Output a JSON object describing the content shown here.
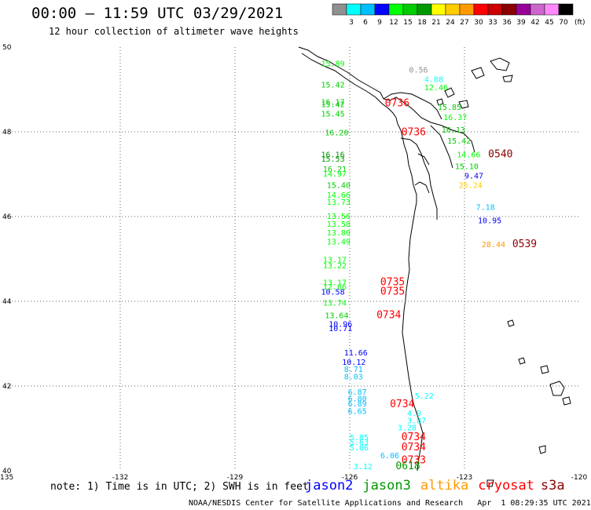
{
  "header": {
    "title": "00:00 – 11:59 UTC 03/29/2021",
    "subtitle": "12 hour collection of altimeter wave heights"
  },
  "colorbar": {
    "unit": "(ft)",
    "bins": [
      {
        "label": "",
        "color": "#909090"
      },
      {
        "label": "3",
        "color": "#00ffff"
      },
      {
        "label": "6",
        "color": "#00bfff"
      },
      {
        "label": "9",
        "color": "#0000ff"
      },
      {
        "label": "12",
        "color": "#00ff00"
      },
      {
        "label": "15",
        "color": "#00cc00"
      },
      {
        "label": "18",
        "color": "#009900"
      },
      {
        "label": "21",
        "color": "#ffff00"
      },
      {
        "label": "24",
        "color": "#ffcc00"
      },
      {
        "label": "27",
        "color": "#ff9900"
      },
      {
        "label": "30",
        "color": "#ff0000"
      },
      {
        "label": "33",
        "color": "#cc0000"
      },
      {
        "label": "36",
        "color": "#8b0000"
      },
      {
        "label": "39",
        "color": "#990099"
      },
      {
        "label": "42",
        "color": "#cc66cc"
      },
      {
        "label": "45",
        "color": "#ff88ff"
      },
      {
        "label": "70",
        "color": "#000000"
      }
    ]
  },
  "axes": {
    "lon_ticks": [
      {
        "lon": -135,
        "label": "-135"
      },
      {
        "lon": -132,
        "label": "-132"
      },
      {
        "lon": -129,
        "label": "-129"
      },
      {
        "lon": -126,
        "label": "-126"
      },
      {
        "lon": -123,
        "label": "-123"
      },
      {
        "lon": -120,
        "label": "-120"
      }
    ],
    "lat_ticks": [
      {
        "lat": 50,
        "label": "50"
      },
      {
        "lat": 48,
        "label": "48"
      },
      {
        "lat": 46,
        "label": "46"
      },
      {
        "lat": 44,
        "label": "44"
      },
      {
        "lat": 42,
        "label": "42"
      },
      {
        "lat": 40,
        "label": "40"
      }
    ],
    "lon_range": [
      -135,
      -120
    ],
    "lat_range": [
      40,
      50
    ],
    "grid": "dotted"
  },
  "observations": [
    {
      "text": "15.89",
      "lon": -126.75,
      "lat": 49.55,
      "color": "#00ff00"
    },
    {
      "text": "0.56",
      "lon": -124.45,
      "lat": 49.4,
      "color": "#909090"
    },
    {
      "text": "4.88",
      "lon": -124.05,
      "lat": 49.18,
      "color": "#00ffff"
    },
    {
      "text": "12.46",
      "lon": -124.05,
      "lat": 48.98,
      "color": "#00ff00"
    },
    {
      "text": "15.42",
      "lon": -126.75,
      "lat": 49.05,
      "color": "#00cc00"
    },
    {
      "text": "15.42",
      "lon": -126.75,
      "lat": 48.58,
      "color": "#00cc00"
    },
    {
      "text": "16.17",
      "lon": -126.75,
      "lat": 48.64,
      "color": "#00cc00"
    },
    {
      "text": "15.45",
      "lon": -126.75,
      "lat": 48.36,
      "color": "#00cc00"
    },
    {
      "text": "0736",
      "lon": -125.08,
      "lat": 48.6,
      "color": "#ff0000"
    },
    {
      "text": "15.85",
      "lon": -123.7,
      "lat": 48.52,
      "color": "#00cc00"
    },
    {
      "text": "16.37",
      "lon": -123.55,
      "lat": 48.28,
      "color": "#00ff00"
    },
    {
      "text": "16.20",
      "lon": -126.65,
      "lat": 47.92,
      "color": "#00cc00"
    },
    {
      "text": "0736",
      "lon": -124.65,
      "lat": 47.92,
      "color": "#ff0000"
    },
    {
      "text": "16.13",
      "lon": -123.6,
      "lat": 47.98,
      "color": "#00cc00"
    },
    {
      "text": "15.42",
      "lon": -123.45,
      "lat": 47.72,
      "color": "#00cc00"
    },
    {
      "text": "16.16",
      "lon": -126.75,
      "lat": 47.4,
      "color": "#009900"
    },
    {
      "text": "15.53",
      "lon": -126.75,
      "lat": 47.3,
      "color": "#009900"
    },
    {
      "text": "14.66",
      "lon": -123.2,
      "lat": 47.4,
      "color": "#00ff00"
    },
    {
      "text": "15.10",
      "lon": -123.25,
      "lat": 47.12,
      "color": "#00cc00"
    },
    {
      "text": "0540",
      "lon": -122.38,
      "lat": 47.4,
      "color": "#8b0000"
    },
    {
      "text": "16.21",
      "lon": -126.7,
      "lat": 47.06,
      "color": "#00cc00"
    },
    {
      "text": "14.97",
      "lon": -126.7,
      "lat": 46.94,
      "color": "#00ff00"
    },
    {
      "text": "9.47",
      "lon": -123.0,
      "lat": 46.9,
      "color": "#0000ff"
    },
    {
      "text": "25.24",
      "lon": -123.15,
      "lat": 46.68,
      "color": "#ffcc00"
    },
    {
      "text": "15.40",
      "lon": -126.6,
      "lat": 46.68,
      "color": "#00cc00"
    },
    {
      "text": "14.66",
      "lon": -126.6,
      "lat": 46.44,
      "color": "#00ff00"
    },
    {
      "text": "13.73",
      "lon": -126.6,
      "lat": 46.28,
      "color": "#00ff00"
    },
    {
      "text": "7.18",
      "lon": -122.7,
      "lat": 46.16,
      "color": "#00bfff"
    },
    {
      "text": "10.95",
      "lon": -122.65,
      "lat": 45.84,
      "color": "#0000ff"
    },
    {
      "text": "13.56",
      "lon": -126.6,
      "lat": 45.94,
      "color": "#00ff00"
    },
    {
      "text": "13.58",
      "lon": -126.6,
      "lat": 45.76,
      "color": "#00ff00"
    },
    {
      "text": "13.80",
      "lon": -126.6,
      "lat": 45.56,
      "color": "#00ff00"
    },
    {
      "text": "13.49",
      "lon": -126.6,
      "lat": 45.34,
      "color": "#00ff00"
    },
    {
      "text": "28.44",
      "lon": -122.55,
      "lat": 45.28,
      "color": "#ff9900"
    },
    {
      "text": "0539",
      "lon": -121.75,
      "lat": 45.28,
      "color": "#8b0000"
    },
    {
      "text": "13.17",
      "lon": -126.7,
      "lat": 44.92,
      "color": "#00ff00"
    },
    {
      "text": "13.22",
      "lon": -126.7,
      "lat": 44.78,
      "color": "#00ff00"
    },
    {
      "text": "13.17",
      "lon": -126.7,
      "lat": 44.38,
      "color": "#00ff00"
    },
    {
      "text": "12.66",
      "lon": -126.7,
      "lat": 44.28,
      "color": "#00ff00"
    },
    {
      "text": "10.58",
      "lon": -126.75,
      "lat": 44.16,
      "color": "#0000ff"
    },
    {
      "text": "0735",
      "lon": -125.2,
      "lat": 44.38,
      "color": "#ff0000"
    },
    {
      "text": "0735",
      "lon": -125.2,
      "lat": 44.16,
      "color": "#ff0000"
    },
    {
      "text": "13.74",
      "lon": -126.7,
      "lat": 43.9,
      "color": "#00ff00"
    },
    {
      "text": "13.64",
      "lon": -126.65,
      "lat": 43.6,
      "color": "#00cc00"
    },
    {
      "text": "0734",
      "lon": -125.3,
      "lat": 43.6,
      "color": "#ff0000"
    },
    {
      "text": "10.96",
      "lon": -126.55,
      "lat": 43.4,
      "color": "#0000ff"
    },
    {
      "text": "10.71",
      "lon": -126.55,
      "lat": 43.3,
      "color": "#0000ff"
    },
    {
      "text": "11.66",
      "lon": -126.15,
      "lat": 42.72,
      "color": "#0000ff"
    },
    {
      "text": "10.12",
      "lon": -126.2,
      "lat": 42.5,
      "color": "#0000ff"
    },
    {
      "text": "8.71",
      "lon": -126.15,
      "lat": 42.33,
      "color": "#00bfff"
    },
    {
      "text": "8.03",
      "lon": -126.15,
      "lat": 42.16,
      "color": "#00bfff"
    },
    {
      "text": "6.87",
      "lon": -126.05,
      "lat": 41.8,
      "color": "#00bfff"
    },
    {
      "text": "6.80",
      "lon": -126.05,
      "lat": 41.64,
      "color": "#00bfff"
    },
    {
      "text": "6.89",
      "lon": -126.05,
      "lat": 41.52,
      "color": "#00bfff"
    },
    {
      "text": "6.65",
      "lon": -126.05,
      "lat": 41.34,
      "color": "#00bfff"
    },
    {
      "text": "0734",
      "lon": -124.95,
      "lat": 41.5,
      "color": "#ff0000"
    },
    {
      "text": "5.22",
      "lon": -124.3,
      "lat": 41.7,
      "color": "#00ffff"
    },
    {
      "text": "4.9",
      "lon": -124.5,
      "lat": 41.3,
      "color": "#00ffff"
    },
    {
      "text": "3.87",
      "lon": -124.5,
      "lat": 41.12,
      "color": "#00ffff"
    },
    {
      "text": "3.28",
      "lon": -124.75,
      "lat": 40.95,
      "color": "#00ffff"
    },
    {
      "text": "5.85",
      "lon": -126.0,
      "lat": 40.72,
      "color": "#00ffff"
    },
    {
      "text": "5.63",
      "lon": -126.0,
      "lat": 40.61,
      "color": "#00ffff"
    },
    {
      "text": "5.06",
      "lon": -126.0,
      "lat": 40.48,
      "color": "#00ffff"
    },
    {
      "text": "0734",
      "lon": -124.65,
      "lat": 40.72,
      "color": "#ff0000"
    },
    {
      "text": "0734",
      "lon": -124.65,
      "lat": 40.48,
      "color": "#ff0000"
    },
    {
      "text": "6.06",
      "lon": -125.2,
      "lat": 40.3,
      "color": "#00bfff"
    },
    {
      "text": "0733",
      "lon": -124.65,
      "lat": 40.18,
      "color": "#ff0000"
    },
    {
      "text": "3.12",
      "lon": -125.9,
      "lat": 40.04,
      "color": "#00ffff"
    },
    {
      "text": "0618",
      "lon": -124.8,
      "lat": 40.04,
      "color": "#009900"
    }
  ],
  "bottom_note": "note: 1) Time is in UTC; 2) SWH is in feet",
  "legend": [
    {
      "label": "jason2",
      "color": "#0000ff"
    },
    {
      "label": "jason3",
      "color": "#009900"
    },
    {
      "label": "altika",
      "color": "#ff9900"
    },
    {
      "label": "cryosat",
      "color": "#ff0000"
    },
    {
      "label": "s3a",
      "color": "#8b0000"
    }
  ],
  "footer": "NOAA/NESDIS Center for Satellite Applications and Research   Apr  1 08:29:35 UTC 2021"
}
